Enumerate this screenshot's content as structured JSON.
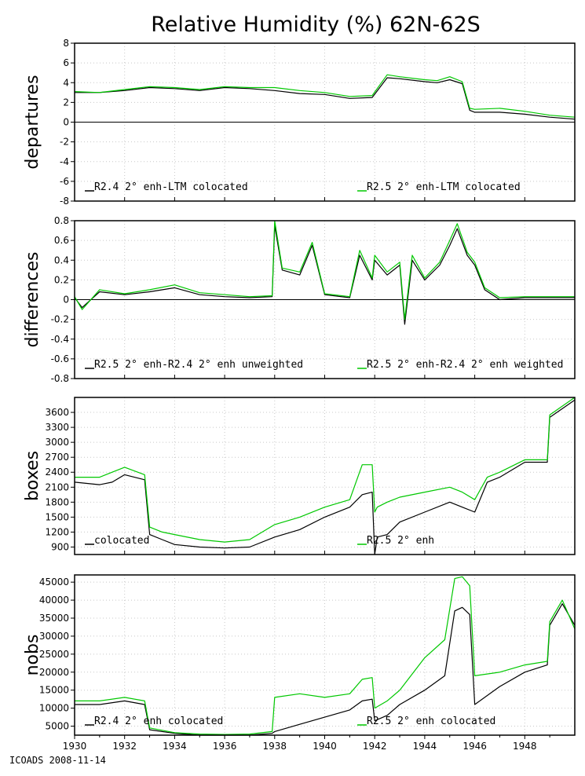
{
  "title": "Relative Humidity (%) 62N-62S",
  "footer": "ICOADS 2008-11-14",
  "colors": {
    "series_a": "#000000",
    "series_b": "#00c800",
    "grid": "#c8c8c8"
  },
  "x_ticks": [
    "1930",
    "1932",
    "1934",
    "1936",
    "1938",
    "1940",
    "1942",
    "1944",
    "1946",
    "1948"
  ],
  "chart_data": [
    {
      "type": "line",
      "ylabel": "departures",
      "xlim": [
        1930,
        1950
      ],
      "ylim": [
        -8,
        8
      ],
      "yticks": [
        -8,
        -6,
        -4,
        -2,
        0,
        2,
        4,
        6,
        8
      ],
      "zero_line": true,
      "grid": true,
      "series": [
        {
          "name": "R2.4 2° enh-LTM colocated",
          "x": [
            1930.0,
            1931.0,
            1932.0,
            1933.0,
            1934.0,
            1935.0,
            1936.0,
            1937.0,
            1938.0,
            1939.0,
            1940.0,
            1941.0,
            1941.9,
            1942.5,
            1943.0,
            1944.0,
            1944.5,
            1945.0,
            1945.5,
            1945.8,
            1946.0,
            1947.0,
            1948.0,
            1949.0,
            1950.0
          ],
          "y": [
            3.0,
            3.0,
            3.2,
            3.5,
            3.4,
            3.2,
            3.5,
            3.4,
            3.2,
            2.9,
            2.8,
            2.4,
            2.5,
            4.5,
            4.4,
            4.1,
            4.0,
            4.3,
            3.9,
            1.2,
            1.0,
            1.0,
            0.8,
            0.5,
            0.3
          ]
        },
        {
          "name": "R2.5 2° enh-LTM colocated",
          "x": [
            1930.0,
            1931.0,
            1932.0,
            1933.0,
            1934.0,
            1935.0,
            1936.0,
            1937.0,
            1938.0,
            1939.0,
            1940.0,
            1941.0,
            1941.9,
            1942.5,
            1943.0,
            1944.0,
            1944.5,
            1945.0,
            1945.5,
            1945.8,
            1946.0,
            1947.0,
            1948.0,
            1949.0,
            1950.0
          ],
          "y": [
            3.1,
            3.0,
            3.3,
            3.6,
            3.5,
            3.3,
            3.6,
            3.5,
            3.5,
            3.2,
            3.0,
            2.6,
            2.7,
            4.8,
            4.6,
            4.3,
            4.2,
            4.6,
            4.1,
            1.4,
            1.3,
            1.4,
            1.1,
            0.7,
            0.5
          ]
        }
      ]
    },
    {
      "type": "line",
      "ylabel": "differences",
      "xlim": [
        1930,
        1950
      ],
      "ylim": [
        -0.8,
        0.8
      ],
      "yticks": [
        -0.8,
        -0.6,
        -0.4,
        -0.2,
        0,
        0.2,
        0.4,
        0.6,
        0.8
      ],
      "zero_line": true,
      "grid": true,
      "series": [
        {
          "name": "R2.5 2° enh-R2.4 2° enh unweighted",
          "x": [
            1930.0,
            1930.3,
            1931.0,
            1932.0,
            1933.0,
            1934.0,
            1935.0,
            1936.0,
            1937.0,
            1937.9,
            1938.0,
            1938.3,
            1939.0,
            1939.5,
            1940.0,
            1941.0,
            1941.4,
            1941.9,
            1942.0,
            1942.5,
            1943.0,
            1943.2,
            1943.5,
            1944.0,
            1944.6,
            1945.0,
            1945.3,
            1945.7,
            1946.0,
            1946.4,
            1947.0,
            1948.0,
            1949.0,
            1950.0
          ],
          "y": [
            0.02,
            -0.08,
            0.08,
            0.05,
            0.08,
            0.12,
            0.05,
            0.03,
            0.02,
            0.03,
            0.75,
            0.3,
            0.25,
            0.55,
            0.05,
            0.02,
            0.45,
            0.2,
            0.4,
            0.25,
            0.35,
            -0.25,
            0.4,
            0.2,
            0.35,
            0.55,
            0.72,
            0.45,
            0.35,
            0.1,
            0.0,
            0.02,
            0.02,
            0.02
          ]
        },
        {
          "name": "R2.5 2° enh-R2.4 2° enh weighted",
          "x": [
            1930.0,
            1930.3,
            1931.0,
            1932.0,
            1933.0,
            1934.0,
            1935.0,
            1936.0,
            1937.0,
            1937.9,
            1938.0,
            1938.3,
            1939.0,
            1939.5,
            1940.0,
            1941.0,
            1941.4,
            1941.9,
            1942.0,
            1942.5,
            1943.0,
            1943.2,
            1943.5,
            1944.0,
            1944.6,
            1945.0,
            1945.3,
            1945.7,
            1946.0,
            1946.4,
            1947.0,
            1948.0,
            1949.0,
            1950.0
          ],
          "y": [
            0.03,
            -0.1,
            0.1,
            0.06,
            0.1,
            0.15,
            0.07,
            0.05,
            0.03,
            0.04,
            0.8,
            0.32,
            0.28,
            0.58,
            0.06,
            0.03,
            0.5,
            0.22,
            0.45,
            0.28,
            0.38,
            -0.2,
            0.45,
            0.22,
            0.38,
            0.6,
            0.77,
            0.48,
            0.38,
            0.12,
            0.02,
            0.03,
            0.03,
            0.03
          ]
        }
      ]
    },
    {
      "type": "line",
      "ylabel": "boxes",
      "xlim": [
        1930,
        1950
      ],
      "ylim": [
        750,
        3900
      ],
      "yticks": [
        900,
        1200,
        1500,
        1800,
        2100,
        2400,
        2700,
        3000,
        3300,
        3600
      ],
      "grid": true,
      "series": [
        {
          "name": "colocated",
          "x": [
            1930.0,
            1931.0,
            1931.5,
            1932.0,
            1932.8,
            1933.0,
            1933.5,
            1934.0,
            1935.0,
            1936.0,
            1937.0,
            1938.0,
            1939.0,
            1940.0,
            1941.0,
            1941.5,
            1941.9,
            1942.0,
            1942.1,
            1942.5,
            1943.0,
            1944.0,
            1945.0,
            1945.5,
            1946.0,
            1946.5,
            1947.0,
            1948.0,
            1948.9,
            1949.0,
            1950.0
          ],
          "y": [
            2200,
            2150,
            2200,
            2350,
            2250,
            1150,
            1050,
            950,
            900,
            880,
            900,
            1100,
            1250,
            1500,
            1700,
            1950,
            2000,
            750,
            1100,
            1150,
            1400,
            1600,
            1800,
            1700,
            1600,
            2200,
            2300,
            2600,
            2600,
            3500,
            3850
          ]
        },
        {
          "name": "R2.5 2° enh",
          "x": [
            1930.0,
            1931.0,
            1931.5,
            1932.0,
            1932.8,
            1933.0,
            1933.5,
            1934.0,
            1935.0,
            1936.0,
            1937.0,
            1938.0,
            1939.0,
            1940.0,
            1941.0,
            1941.5,
            1941.9,
            1942.0,
            1942.1,
            1942.5,
            1943.0,
            1944.0,
            1945.0,
            1945.5,
            1946.0,
            1946.5,
            1947.0,
            1948.0,
            1948.9,
            1949.0,
            1950.0
          ],
          "y": [
            2300,
            2300,
            2400,
            2500,
            2350,
            1300,
            1200,
            1150,
            1050,
            1000,
            1050,
            1350,
            1500,
            1700,
            1850,
            2550,
            2550,
            1600,
            1700,
            1800,
            1900,
            2000,
            2100,
            2000,
            1850,
            2300,
            2400,
            2650,
            2650,
            3550,
            3900
          ]
        }
      ]
    },
    {
      "type": "line",
      "ylabel": "nobs",
      "xlim": [
        1930,
        1950
      ],
      "ylim": [
        2500,
        47000
      ],
      "yticks": [
        5000,
        10000,
        15000,
        20000,
        25000,
        30000,
        35000,
        40000,
        45000
      ],
      "grid": true,
      "series": [
        {
          "name": "R2.4 2° enh colocated",
          "x": [
            1930.0,
            1931.0,
            1932.0,
            1932.8,
            1933.0,
            1934.0,
            1935.0,
            1936.0,
            1937.0,
            1937.9,
            1938.0,
            1939.0,
            1940.0,
            1941.0,
            1941.5,
            1941.9,
            1942.0,
            1942.5,
            1943.0,
            1944.0,
            1944.8,
            1945.2,
            1945.5,
            1945.8,
            1946.0,
            1947.0,
            1948.0,
            1948.9,
            1949.0,
            1949.5,
            1950.0
          ],
          "y": [
            11000,
            11000,
            12000,
            11000,
            4000,
            3000,
            2500,
            2500,
            2500,
            3000,
            3500,
            5500,
            7500,
            9500,
            12000,
            12500,
            6500,
            8000,
            11000,
            15000,
            19000,
            37000,
            38000,
            36000,
            11000,
            16000,
            20000,
            22000,
            33000,
            39000,
            33000
          ]
        },
        {
          "name": "R2.5 2° enh colocated",
          "x": [
            1930.0,
            1931.0,
            1932.0,
            1932.8,
            1933.0,
            1934.0,
            1935.0,
            1936.0,
            1937.0,
            1937.9,
            1938.0,
            1939.0,
            1940.0,
            1941.0,
            1941.5,
            1941.9,
            1942.0,
            1942.5,
            1943.0,
            1944.0,
            1944.8,
            1945.2,
            1945.5,
            1945.8,
            1946.0,
            1947.0,
            1948.0,
            1948.9,
            1949.0,
            1949.5,
            1950.0
          ],
          "y": [
            12000,
            12000,
            13000,
            12000,
            4500,
            3200,
            2800,
            2700,
            2800,
            3500,
            13000,
            14000,
            13000,
            14000,
            18000,
            18500,
            10000,
            12000,
            15000,
            24000,
            29000,
            46000,
            46500,
            44000,
            19000,
            20000,
            22000,
            23000,
            34000,
            40000,
            32000
          ]
        }
      ]
    }
  ]
}
